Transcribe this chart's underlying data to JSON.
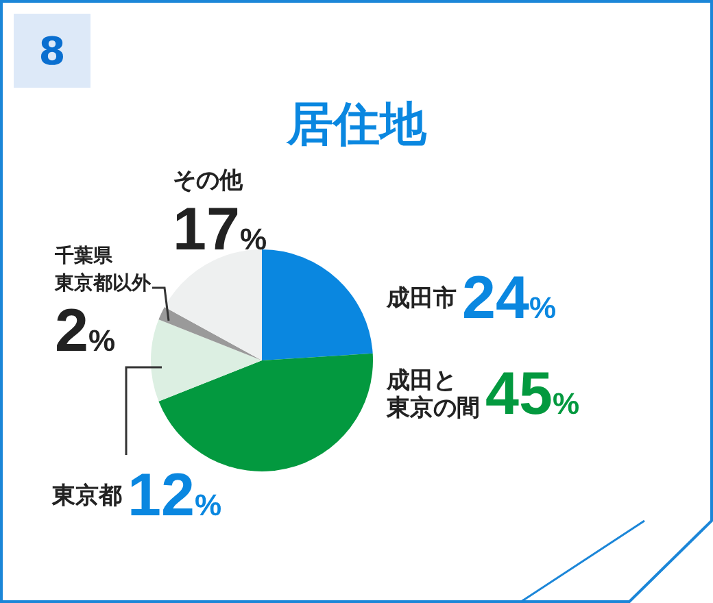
{
  "chart_data": {
    "type": "pie",
    "title": "居住地",
    "categories": [
      "成田市",
      "成田と東京の間",
      "東京都",
      "千葉県東京都以外",
      "その他"
    ],
    "values": [
      24,
      45,
      12,
      2,
      17
    ],
    "value_labels": [
      "24%",
      "45%",
      "12%",
      "2%",
      "17%"
    ],
    "colors": [
      "#0a87e0",
      "#03993f",
      "#dcefe2",
      "#9a9a9a",
      "#eef0f0"
    ],
    "annotations": [
      "8"
    ],
    "legend": false
  }
}
